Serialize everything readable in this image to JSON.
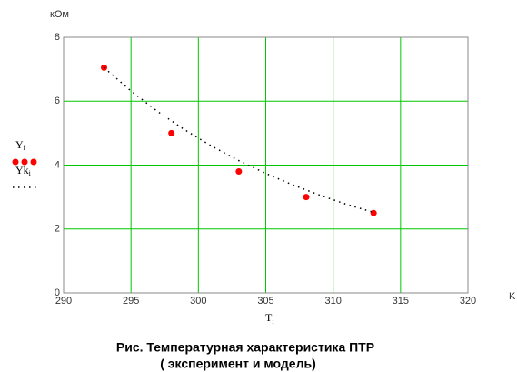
{
  "chart_data": {
    "type": "line",
    "y_unit": "кОм",
    "x_unit": "K",
    "x_label": {
      "text": "T",
      "sub": "i"
    },
    "caption": [
      "Рис.  Температурная характеристика ПТР",
      "(   эксперимент и      модель)"
    ],
    "series": [
      {
        "name": "Y",
        "sub": "i",
        "color": "#ff0000",
        "style": "points",
        "x": [
          293,
          298,
          303,
          308,
          313
        ],
        "values": [
          7.05,
          5.0,
          3.8,
          3.0,
          2.5
        ]
      },
      {
        "name": "Yk",
        "sub": "i",
        "color": "#000000",
        "style": "dotted",
        "x": [
          293,
          295,
          297,
          299,
          301,
          303,
          305,
          307,
          309,
          311,
          313
        ],
        "values": [
          7.05,
          6.32,
          5.67,
          5.1,
          4.59,
          4.14,
          3.74,
          3.38,
          3.06,
          2.77,
          2.52
        ]
      }
    ],
    "xlim": [
      290,
      320
    ],
    "xticks": [
      290,
      295,
      300,
      305,
      310,
      315,
      320
    ],
    "ylim": [
      0,
      8
    ],
    "yticks": [
      0,
      2,
      4,
      6,
      8
    ],
    "grid": true,
    "grid_color": "#00c800"
  }
}
